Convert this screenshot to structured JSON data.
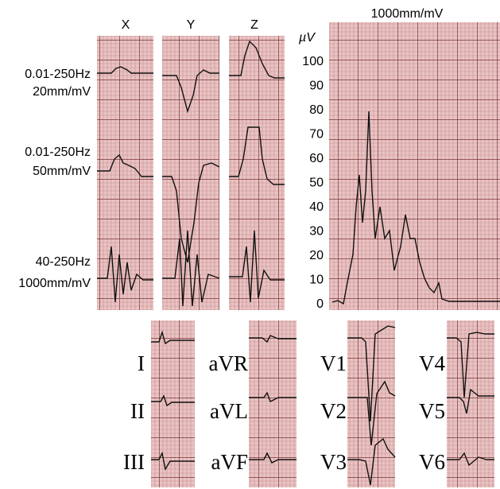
{
  "columns": [
    "X",
    "Y",
    "Z"
  ],
  "rows": [
    {
      "filter": "0.01-250Hz",
      "gain": "20mm/mV"
    },
    {
      "filter": "0.01-250Hz",
      "gain": "50mm/mV"
    },
    {
      "filter": "40-250Hz",
      "gain": "1000mm/mV"
    }
  ],
  "magnified": {
    "title": "1000mm/mV",
    "unit": "µV",
    "yticks": [
      0,
      10,
      20,
      30,
      40,
      50,
      60,
      70,
      80,
      90,
      100
    ]
  },
  "leads": [
    [
      "I",
      "II",
      "III"
    ],
    [
      "aVR",
      "aVL",
      "aVF"
    ],
    [
      "V1",
      "V2",
      "V3"
    ],
    [
      "V4",
      "V5",
      "V6"
    ]
  ]
}
